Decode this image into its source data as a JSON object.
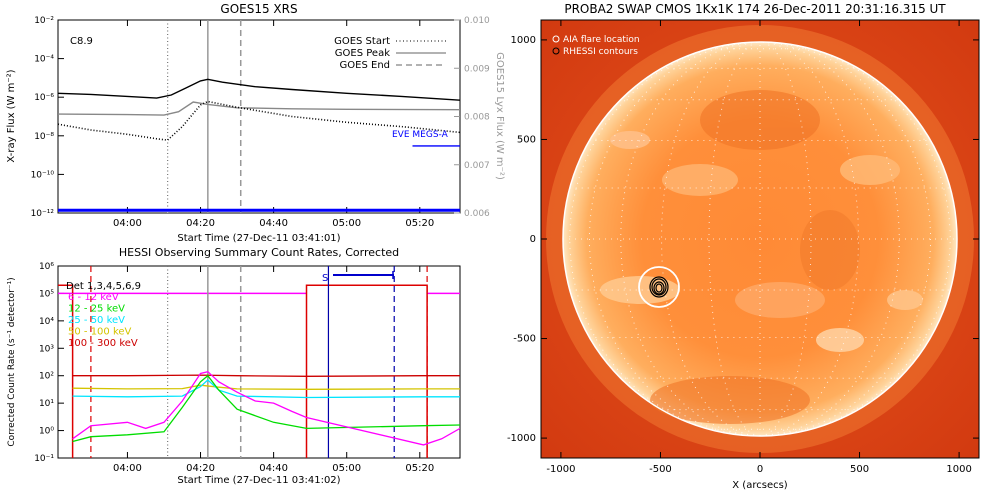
{
  "chart_data": [
    {
      "type": "line",
      "title": "GOES15 XRS",
      "xlabel": "Start Time (27-Dec-11 03:41:01)",
      "ylabel": "X-ray Flux (W m⁻²)",
      "y2label": "GOES15 Lyx Flux (W m⁻²)",
      "xlim": [
        "03:41",
        "05:31"
      ],
      "ylim": [
        1e-12,
        0.01
      ],
      "yscale": "log",
      "y2lim": [
        0.006,
        0.01
      ],
      "xticks": [
        "04:00",
        "04:20",
        "04:40",
        "05:00",
        "05:20"
      ],
      "yticks": [
        "10⁻¹²",
        "10⁻¹⁰",
        "10⁻⁸",
        "10⁻⁶",
        "10⁻⁴",
        "10⁻²"
      ],
      "y2ticks": [
        "0.006",
        "0.007",
        "0.008",
        "0.009",
        "0.010"
      ],
      "flare_class": "C8.9",
      "legend": [
        {
          "name": "GOES Start",
          "style": "dotted",
          "color": "#555555"
        },
        {
          "name": "GOES Peak",
          "style": "solid",
          "color": "#999999"
        },
        {
          "name": "GOES End",
          "style": "dashed",
          "color": "#999999"
        }
      ],
      "annotation": "EVE MEGS-A",
      "markers": {
        "start": "04:11",
        "peak": "04:22",
        "end": "04:31"
      },
      "series": [
        {
          "color": "#000000",
          "style": "solid",
          "x": [
            "03:41",
            "03:50",
            "04:00",
            "04:08",
            "04:12",
            "04:16",
            "04:20",
            "04:22",
            "04:26",
            "04:35",
            "04:45",
            "05:00",
            "05:15",
            "05:31"
          ],
          "y": [
            1.6e-06,
            1.4e-06,
            1.1e-06,
            9e-07,
            1.3e-06,
            3e-06,
            7e-06,
            8.5e-06,
            6e-06,
            3.5e-06,
            2.5e-06,
            1.6e-06,
            1.1e-06,
            7e-07
          ]
        },
        {
          "color": "#888888",
          "style": "solid",
          "axis": "y2",
          "x": [
            "03:41",
            "04:00",
            "04:10",
            "04:14",
            "04:18",
            "04:22",
            "04:30",
            "04:45",
            "05:00",
            "05:31"
          ],
          "y": [
            0.00805,
            0.00804,
            0.00803,
            0.0081,
            0.0083,
            0.00825,
            0.00818,
            0.00816,
            0.00815,
            0.00814
          ]
        },
        {
          "color": "#000000",
          "style": "dotted",
          "x": [
            "03:41",
            "03:50",
            "04:00",
            "04:08",
            "04:11",
            "04:15",
            "04:20",
            "04:22",
            "04:30",
            "04:45",
            "05:00",
            "05:15",
            "05:31"
          ],
          "y": [
            4e-08,
            2e-08,
            1.2e-08,
            7e-09,
            6e-09,
            3e-08,
            4e-07,
            6e-07,
            3e-07,
            1e-07,
            5e-08,
            3e-08,
            1.5e-08
          ]
        },
        {
          "color": "#0000ff",
          "style": "solid",
          "x": [
            "03:41",
            "05:31"
          ],
          "y": [
            1.4e-12,
            1.4e-12
          ]
        },
        {
          "color": "#0000ff",
          "style": "solid",
          "x": [
            "05:18",
            "05:31"
          ],
          "y": [
            3e-09,
            3e-09
          ]
        }
      ]
    },
    {
      "type": "line",
      "title": "HESSI Observing Summary Count Rates, Corrected",
      "xlabel": "Start Time (27-Dec-11 03:41:02)",
      "ylabel": "Corrected Count Rate (s⁻¹ detector⁻¹)",
      "xlim": [
        "03:41",
        "05:31"
      ],
      "ylim": [
        0.1,
        1000000.0
      ],
      "yscale": "log",
      "xticks": [
        "04:00",
        "04:20",
        "04:40",
        "05:00",
        "05:20"
      ],
      "yticks": [
        "10⁻¹",
        "10⁰",
        "10¹",
        "10²",
        "10³",
        "10⁴",
        "10⁵",
        "10⁶"
      ],
      "detectors": "Det 1,3,4,5,6,9",
      "saa_label": "S",
      "legend": [
        {
          "name": "6 - 12 keV",
          "color": "#ff00ff"
        },
        {
          "name": "12 - 25 keV",
          "color": "#00dd00"
        },
        {
          "name": "25 - 50 keV",
          "color": "#00e5ff"
        },
        {
          "name": "50 - 100 keV",
          "color": "#d4c400"
        },
        {
          "name": "100 - 300 keV",
          "color": "#cc0000"
        }
      ],
      "series": [
        {
          "name": "6 - 12 keV",
          "color": "#ff00ff",
          "x": [
            "03:45",
            "03:50",
            "04:00",
            "04:05",
            "04:10",
            "04:15",
            "04:20",
            "04:22",
            "04:25",
            "04:30",
            "04:35",
            "04:40",
            "04:45",
            "04:49",
            "05:21",
            "05:26",
            "05:31"
          ],
          "y": [
            0.5,
            1.5,
            2,
            1.2,
            2,
            12,
            120,
            140,
            60,
            25,
            12,
            10,
            5,
            3,
            0.3,
            0.5,
            1.2
          ]
        },
        {
          "name": "12 - 25 keV",
          "color": "#00dd00",
          "x": [
            "03:45",
            "03:50",
            "04:00",
            "04:10",
            "04:15",
            "04:20",
            "04:22",
            "04:25",
            "04:30",
            "04:40",
            "04:49",
            "05:21",
            "05:31"
          ],
          "y": [
            0.4,
            0.6,
            0.7,
            0.9,
            7,
            60,
            100,
            30,
            6,
            2,
            1.2,
            1.5,
            1.6
          ]
        },
        {
          "name": "25 - 50 keV",
          "color": "#00e5ff",
          "x": [
            "03:45",
            "04:00",
            "04:15",
            "04:20",
            "04:22",
            "04:25",
            "04:30",
            "04:49",
            "05:21",
            "05:31"
          ],
          "y": [
            18,
            17,
            18,
            40,
            70,
            30,
            18,
            16,
            17,
            17
          ]
        },
        {
          "name": "50 - 100 keV",
          "color": "#d4c400",
          "x": [
            "03:45",
            "04:00",
            "04:15",
            "04:20",
            "04:25",
            "04:30",
            "04:49",
            "05:21",
            "05:31"
          ],
          "y": [
            35,
            33,
            34,
            45,
            38,
            33,
            32,
            33,
            33
          ]
        },
        {
          "name": "100 - 300 keV",
          "color": "#cc0000",
          "x": [
            "03:45",
            "04:00",
            "04:20",
            "04:30",
            "04:49",
            "05:21",
            "05:31"
          ],
          "y": [
            100,
            100,
            105,
            100,
            95,
            100,
            100
          ]
        }
      ]
    },
    {
      "type": "heatmap",
      "title": "PROBA2 SWAP CMOS 1Kx1K 174 26-Dec-2011 20:31:16.315 UT",
      "xlabel": "X (arcsecs)",
      "ylabel": "",
      "xlim": [
        -1100,
        1100
      ],
      "ylim": [
        -1100,
        1100
      ],
      "xticks": [
        "-1000",
        "-500",
        "0",
        "500",
        "1000"
      ],
      "yticks": [
        "-1000",
        "-500",
        "0",
        "500",
        "1000"
      ],
      "legend": [
        "AIA flare location",
        "RHESSI contours"
      ],
      "flare_location": {
        "x": -500,
        "y": -250
      }
    }
  ]
}
